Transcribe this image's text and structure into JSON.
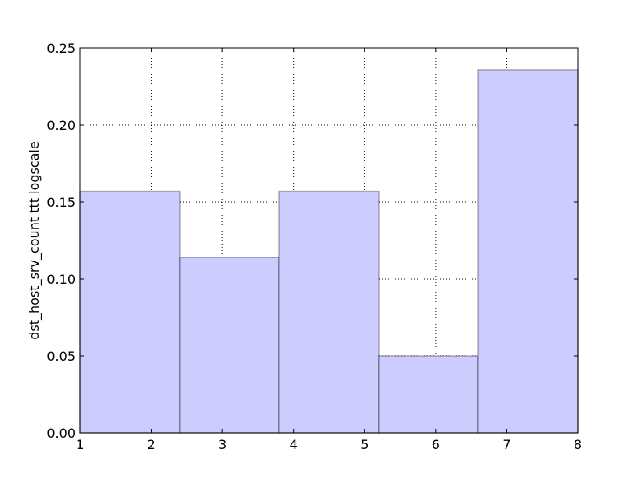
{
  "chart_data": {
    "type": "bar",
    "title": "",
    "xlabel": "",
    "ylabel": "dst_host_srv_count ttt logscale",
    "xlim": [
      1,
      8
    ],
    "ylim": [
      0,
      0.25
    ],
    "xticks": [
      "1",
      "2",
      "3",
      "4",
      "5",
      "6",
      "7",
      "8"
    ],
    "yticks": [
      "0.00",
      "0.05",
      "0.10",
      "0.15",
      "0.20",
      "0.25"
    ],
    "grid": true,
    "bar_color": "#ccccff",
    "bins": [
      {
        "x0": 1.0,
        "x1": 2.4,
        "value": 0.157
      },
      {
        "x0": 2.4,
        "x1": 3.8,
        "value": 0.114
      },
      {
        "x0": 3.8,
        "x1": 5.2,
        "value": 0.157
      },
      {
        "x0": 5.2,
        "x1": 6.6,
        "value": 0.05
      },
      {
        "x0": 6.6,
        "x1": 8.0,
        "value": 0.236
      }
    ]
  }
}
